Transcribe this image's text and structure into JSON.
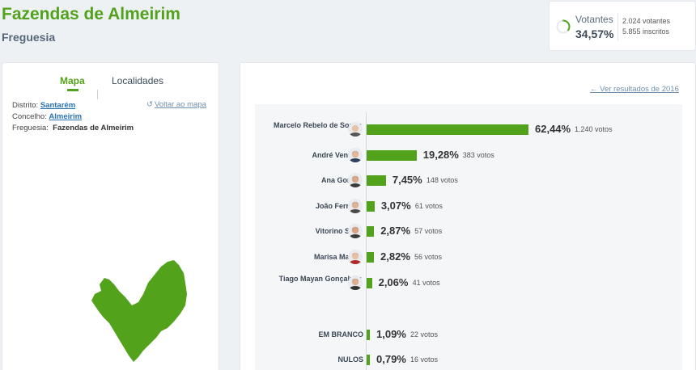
{
  "header": {
    "title": "Fazendas de Almeirim",
    "subtitle": "Freguesia"
  },
  "turnout": {
    "label": "Votantes",
    "percent": "34,57%",
    "percent_value": 34.57,
    "voters": "2.024 votantes",
    "registered": "5.855 inscritos",
    "accent_color": "#53a21c"
  },
  "left_panel": {
    "tabs": [
      {
        "label": "Mapa",
        "active": true
      },
      {
        "label": "Localidades",
        "active": false
      }
    ],
    "location": {
      "district_label": "Distrito:",
      "district": "Santarém",
      "council_label": "Concelho:",
      "council": "Almeirim",
      "parish_label": "Freguesia:",
      "parish": "Fazendas de Almeirim"
    },
    "back_to_map": "Voltar ao mapa",
    "back_icon": "refresh-icon"
  },
  "right_panel": {
    "prev_results_link": "Ver resultados de 2016",
    "prev_icon": "arrow-left-icon"
  },
  "chart_data": {
    "type": "bar",
    "orientation": "horizontal",
    "categories": [
      "Marcelo Rebelo de Sousa",
      "André Ventura",
      "Ana Gomes",
      "João Ferreira",
      "Vitorino Silva",
      "Marisa Matias",
      "Tiago Mayan Gonçalves",
      "EM BRANCO",
      "NULOS"
    ],
    "values": [
      62.44,
      19.28,
      7.45,
      3.07,
      2.87,
      2.82,
      2.06,
      1.09,
      0.79
    ],
    "labels": [
      "62,44%",
      "19,28%",
      "7,45%",
      "3,07%",
      "2,87%",
      "2,82%",
      "2,06%",
      "1,09%",
      "0,79%"
    ],
    "votes": [
      "1.240 votos",
      "383 votos",
      "148 votos",
      "61 votos",
      "57 votos",
      "56 votos",
      "41 votos",
      "22 votos",
      "16 votos"
    ],
    "has_avatar": [
      true,
      true,
      true,
      true,
      true,
      true,
      true,
      false,
      false
    ],
    "bar_color": "#53a21c",
    "xlim": [
      0,
      100
    ]
  }
}
